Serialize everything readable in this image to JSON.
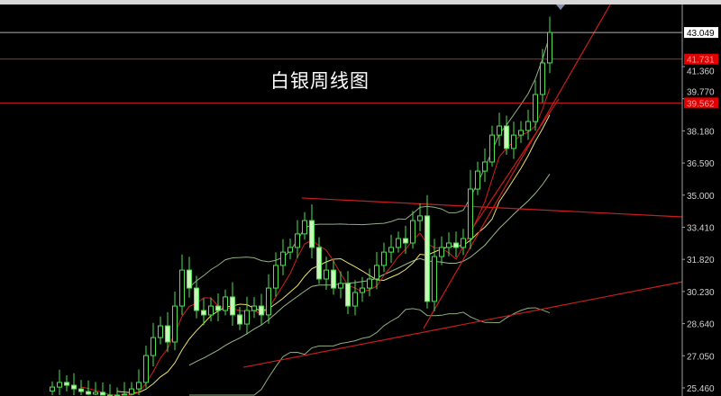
{
  "title": "白银周线图",
  "chart_data": {
    "type": "candlestick",
    "title": "白银周线图",
    "ylim": [
      25.0,
      44.7
    ],
    "y_ticks": [
      "41.360",
      "39.770",
      "38.180",
      "36.590",
      "35.000",
      "33.410",
      "31.820",
      "30.230",
      "28.640",
      "27.050",
      "25.460"
    ],
    "closes": [
      25.5,
      25.73,
      25.59,
      25.41,
      25.28,
      25.15,
      25.24,
      25.06,
      24.84,
      25.06,
      25.15,
      25.41,
      25.73,
      27.06,
      27.95,
      28.53,
      27.73,
      29.51,
      31.29,
      30.4,
      29.29,
      29.07,
      29.51,
      29.29,
      29.96,
      29.07,
      28.62,
      29.29,
      29.51,
      29.07,
      30.4,
      31.52,
      32.18,
      32.41,
      33.08,
      33.74,
      32.41,
      30.85,
      31.29,
      30.4,
      30.63,
      29.51,
      30.18,
      30.4,
      30.85,
      31.52,
      32.18,
      32.41,
      32.85,
      32.63,
      33.74,
      33.97,
      29.74,
      31.96,
      32.41,
      32.63,
      32.41,
      32.85,
      35.3,
      36.19,
      36.64,
      37.97,
      38.42,
      37.31,
      37.97,
      38.2,
      38.64,
      39.98,
      41.54,
      43.049
    ],
    "horizontal_levels": [
      {
        "label": "43.049",
        "price": 43.049,
        "color": "#b0b0b0",
        "tag_bg": "#ffffff",
        "tag_fg": "#000000"
      },
      {
        "label": "41.731",
        "price": 41.731,
        "color": "#d01818",
        "tag_bg": "#e00000",
        "tag_fg": "#ff9a9a"
      },
      {
        "label": "39.562",
        "price": 39.562,
        "color": "#d01818",
        "tag_bg": "#e00000",
        "tag_fg": "#ff9a9a"
      }
    ],
    "trendlines": [
      {
        "from": [
          34.6,
          34.86
        ],
        "to": [
          87.4,
          33.92
        ]
      },
      {
        "from": [
          26.5,
          26.48
        ],
        "to": [
          87.4,
          30.71
        ]
      },
      {
        "from": [
          51.5,
          28.4
        ],
        "to": [
          77.75,
          44.66
        ]
      },
      {
        "from": [
          57.75,
          33.08
        ],
        "to": [
          70.25,
          39.76
        ]
      }
    ],
    "indicators": [
      "MA5",
      "MA10",
      "MA20",
      "Bollinger(20,2)"
    ],
    "colors": {
      "candle": "#4ee04e",
      "bull_body": "#000000",
      "bear_body": "#c8f5b8",
      "ma5": "#d02020",
      "ma10": "#e8e070",
      "ma20": "#9ab88a",
      "bands": "#8fae80",
      "trendline": "#c81e1e",
      "axis": "#a0a0a0"
    }
  }
}
